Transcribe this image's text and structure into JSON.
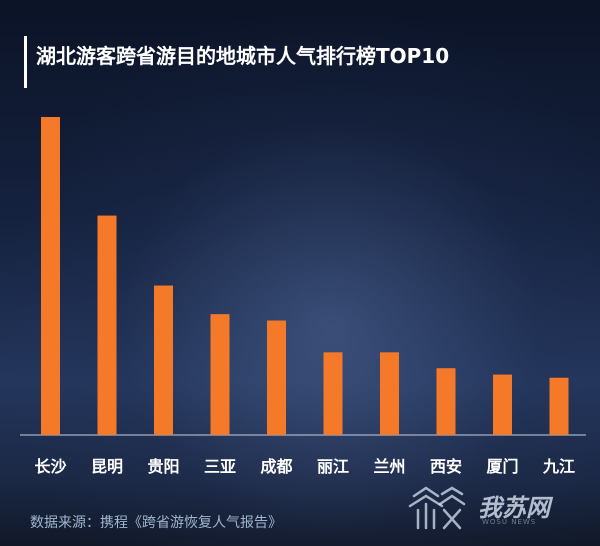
{
  "chart_data": {
    "type": "bar",
    "title": "湖北游客跨省游目的地城市人气排行榜TOP10",
    "categories": [
      "长沙",
      "昆明",
      "贵阳",
      "三亚",
      "成都",
      "丽江",
      "兰州",
      "西安",
      "厦门",
      "九江"
    ],
    "values": [
      100,
      69,
      47,
      38,
      36,
      26,
      26,
      21,
      19,
      18
    ],
    "ylim": [
      0,
      100
    ],
    "bar_color": "#f47a2a",
    "grid": false
  },
  "source": "数据来源：携程《跨省游恢复人气报告》",
  "watermark": {
    "text": "我苏网",
    "icon": "jiangsu-logo-icon"
  }
}
